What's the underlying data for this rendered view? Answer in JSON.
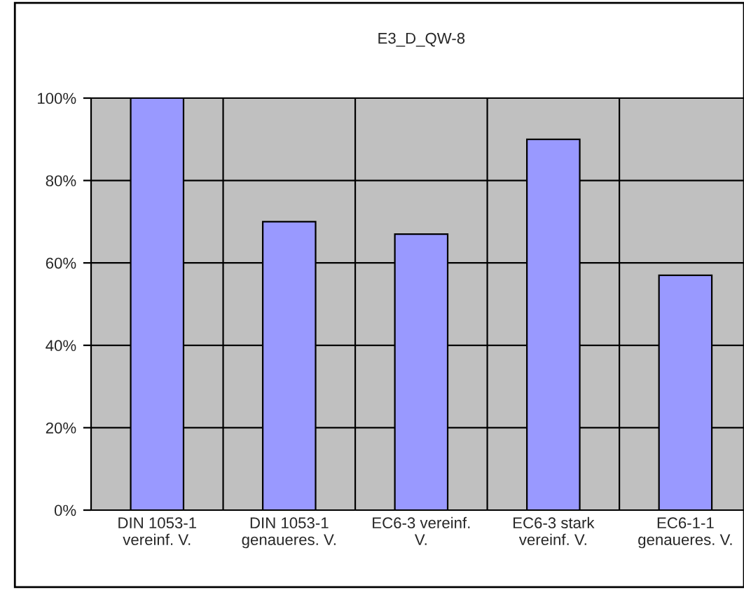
{
  "chart_data": {
    "type": "bar",
    "title": "E3_D_QW-8",
    "categories": [
      "DIN 1053-1\nvereinf. V.",
      "DIN 1053-1\ngenaueres. V.",
      "EC6-3 vereinf.\nV.",
      "EC6-3 stark\nvereinf. V.",
      "EC6-1-1\ngenaueres. V."
    ],
    "values": [
      100,
      70,
      67,
      90,
      57
    ],
    "color": "#9999ff",
    "ylim": [
      0,
      100
    ],
    "yticks": [
      {
        "value": 0,
        "label": "0%"
      },
      {
        "value": 20,
        "label": "20%"
      },
      {
        "value": 40,
        "label": "40%"
      },
      {
        "value": 60,
        "label": "60%"
      },
      {
        "value": 80,
        "label": "80%"
      },
      {
        "value": 100,
        "label": "100%"
      }
    ],
    "grid": true,
    "legend": false
  }
}
